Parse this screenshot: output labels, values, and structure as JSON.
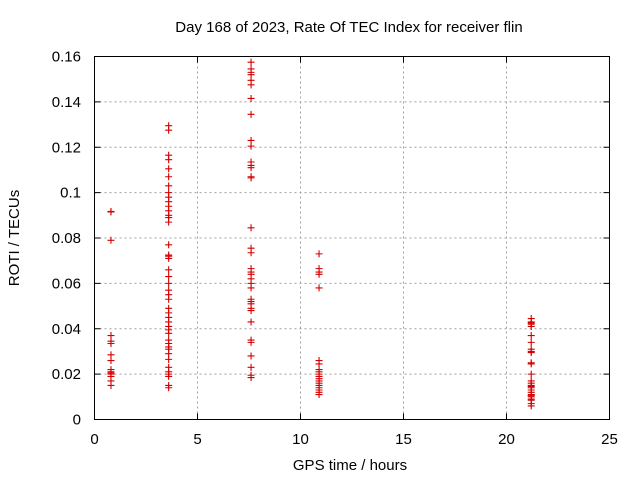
{
  "chart_data": {
    "type": "scatter",
    "title": "Day 168 of 2023, Rate Of TEC Index for receiver flin",
    "xlabel": "GPS time / hours",
    "ylabel": "ROTI / TECUs",
    "xlim": [
      0,
      25
    ],
    "ylim": [
      0,
      0.16
    ],
    "xticks": [
      0,
      5,
      10,
      15,
      20,
      25
    ],
    "xtick_labels": [
      "0",
      "5",
      "10",
      "15",
      "20",
      "25"
    ],
    "yticks": [
      0,
      0.02,
      0.04,
      0.06,
      0.08,
      0.1,
      0.12,
      0.14,
      0.16
    ],
    "ytick_labels": [
      "0",
      "0.02",
      "0.04",
      "0.06",
      "0.08",
      "0.1",
      "0.12",
      "0.14",
      "0.16"
    ],
    "grid": true,
    "marker": "+",
    "color": "#d40000",
    "series": [
      {
        "x": 0.8,
        "y": [
          0.0915,
          0.0917,
          0.079,
          0.037,
          0.0345,
          0.0335,
          0.0285,
          0.026,
          0.022,
          0.021,
          0.0205,
          0.02,
          0.019,
          0.017,
          0.015
        ]
      },
      {
        "x": 3.6,
        "y": [
          0.1295,
          0.1275,
          0.1165,
          0.1145,
          0.1105,
          0.107,
          0.103,
          0.1,
          0.098,
          0.096,
          0.094,
          0.092,
          0.09,
          0.089,
          0.087,
          0.077,
          0.0725,
          0.072,
          0.071,
          0.066,
          0.063,
          0.06,
          0.057,
          0.055,
          0.053,
          0.049,
          0.047,
          0.045,
          0.043,
          0.041,
          0.0395,
          0.038,
          0.035,
          0.0335,
          0.032,
          0.031,
          0.029,
          0.0265,
          0.023,
          0.021,
          0.02,
          0.019,
          0.015,
          0.014
        ]
      },
      {
        "x": 7.6,
        "y": [
          0.1575,
          0.1545,
          0.153,
          0.152,
          0.1495,
          0.1475,
          0.1415,
          0.1345,
          0.123,
          0.1205,
          0.1135,
          0.112,
          0.111,
          0.107,
          0.1065,
          0.0845,
          0.0755,
          0.0735,
          0.0665,
          0.065,
          0.064,
          0.062,
          0.06,
          0.058,
          0.053,
          0.052,
          0.051,
          0.049,
          0.048,
          0.043,
          0.035,
          0.034,
          0.028,
          0.023,
          0.0195,
          0.0185
        ]
      },
      {
        "x": 10.9,
        "y": [
          0.073,
          0.0665,
          0.065,
          0.064,
          0.058,
          0.026,
          0.0245,
          0.022,
          0.021,
          0.02,
          0.019,
          0.018,
          0.017,
          0.016,
          0.015,
          0.014,
          0.013,
          0.012,
          0.011
        ]
      },
      {
        "x": 21.2,
        "y": [
          0.0445,
          0.043,
          0.0425,
          0.042,
          0.041,
          0.037,
          0.034,
          0.031,
          0.03,
          0.0295,
          0.025,
          0.0245,
          0.02,
          0.017,
          0.016,
          0.015,
          0.0145,
          0.014,
          0.013,
          0.012,
          0.011,
          0.0105,
          0.01,
          0.009,
          0.0085,
          0.007,
          0.006
        ]
      }
    ]
  }
}
